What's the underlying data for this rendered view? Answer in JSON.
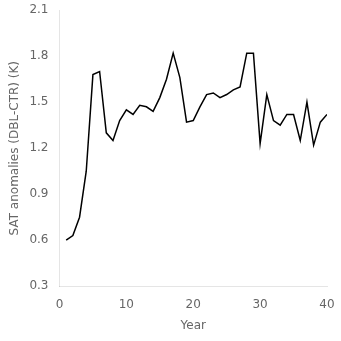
{
  "chart_data": {
    "type": "line",
    "xlabel": "Year",
    "ylabel": "SAT anomalies (DBL-CTR) (K)",
    "x": [
      1,
      2,
      3,
      4,
      5,
      6,
      7,
      8,
      9,
      10,
      11,
      12,
      13,
      14,
      15,
      16,
      17,
      18,
      19,
      20,
      21,
      22,
      23,
      24,
      25,
      26,
      27,
      28,
      29,
      30,
      31,
      32,
      33,
      34,
      35,
      36,
      37,
      38,
      39,
      40
    ],
    "values": [
      0.6,
      0.63,
      0.75,
      1.05,
      1.68,
      1.7,
      1.3,
      1.25,
      1.38,
      1.45,
      1.42,
      1.48,
      1.47,
      1.44,
      1.53,
      1.65,
      1.82,
      1.66,
      1.37,
      1.38,
      1.47,
      1.55,
      1.56,
      1.53,
      1.55,
      1.58,
      1.6,
      1.82,
      1.82,
      1.23,
      1.55,
      1.38,
      1.35,
      1.42,
      1.42,
      1.25,
      1.5,
      1.22,
      1.37,
      1.42
    ],
    "color": "black",
    "xlim": [
      0,
      40
    ],
    "ylim": [
      0.3,
      2.1
    ],
    "xticks": [
      0,
      10,
      20,
      30,
      40
    ],
    "yticks": [
      0.3,
      0.6,
      0.9,
      1.2,
      1.5,
      1.8,
      2.1
    ],
    "grid": false
  }
}
